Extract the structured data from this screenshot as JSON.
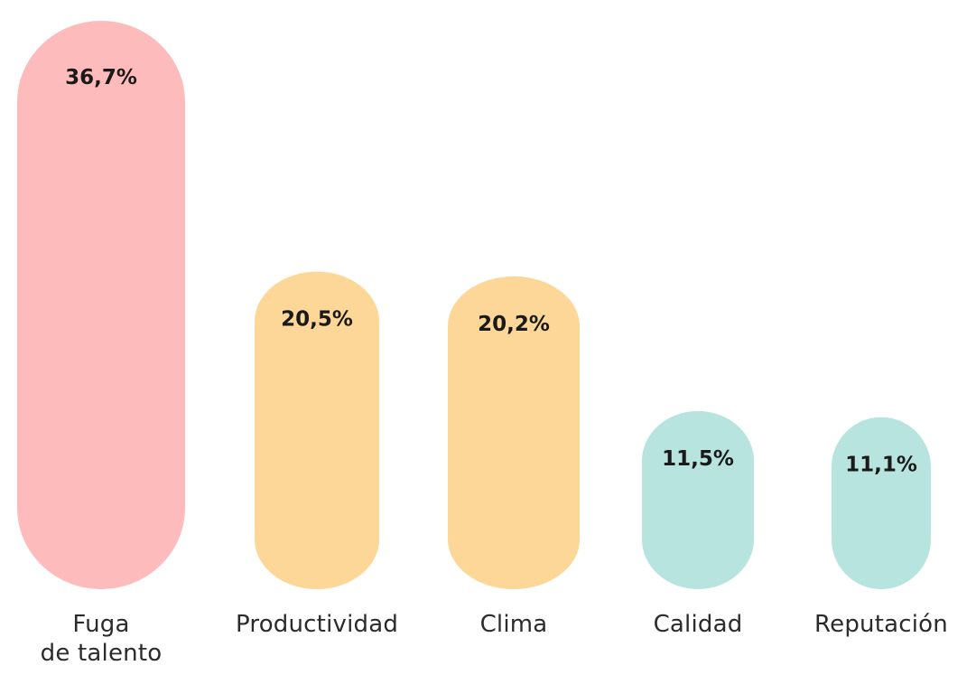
{
  "chart_data": {
    "type": "bar",
    "categories": [
      "Fuga\nde talento",
      "Productividad",
      "Clima",
      "Calidad",
      "Reputación"
    ],
    "values": [
      36.7,
      20.5,
      20.2,
      11.5,
      11.1
    ],
    "value_labels": [
      "36,7%",
      "20,5%",
      "20,2%",
      "11,5%",
      "11,1%"
    ],
    "colors": [
      "#fdbcbb",
      "#fcd797",
      "#fcd797",
      "#b7e4df",
      "#b7e4df"
    ],
    "ylim": [
      0,
      40
    ],
    "grid": false,
    "legend": "none",
    "title": "",
    "xlabel": "",
    "ylabel": ""
  }
}
